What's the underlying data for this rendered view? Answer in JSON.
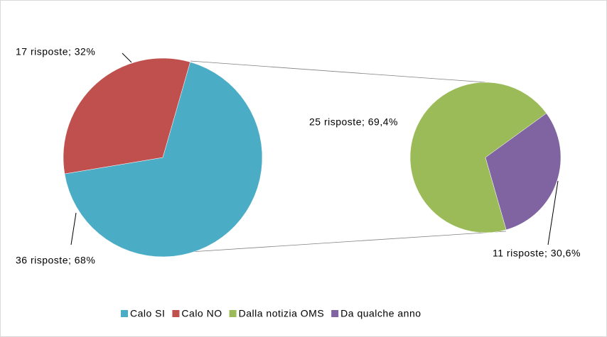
{
  "chart_data": [
    {
      "type": "pie",
      "categories": [
        "Calo SI",
        "Calo NO"
      ],
      "values": [
        36,
        17
      ],
      "value_labels": [
        "36 risposte; 68%",
        "17 risposte; 32%"
      ],
      "colors": [
        "#4bacc6",
        "#c0504d"
      ]
    },
    {
      "type": "pie",
      "categories": [
        "Dalla notizia OMS",
        "Da qualche anno"
      ],
      "values": [
        25,
        11
      ],
      "value_labels": [
        "25 risposte; 69,4%",
        "11 risposte; 30,6%"
      ],
      "colors": [
        "#9bbb59",
        "#8064a2"
      ]
    }
  ]
}
